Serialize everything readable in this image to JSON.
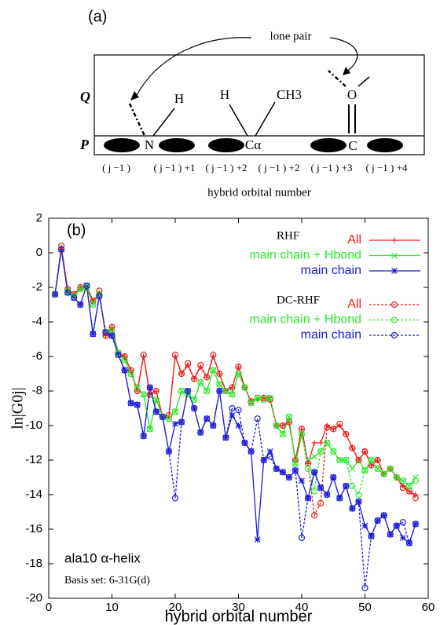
{
  "diagram": {
    "panel_label": "(a)",
    "lone_pair": "lone pair",
    "row_q": "Q",
    "row_p": "P",
    "atoms": [
      "H",
      "H",
      "CH3",
      "O",
      "N",
      "Cα",
      "C"
    ],
    "orbital_labels": [
      "( j −1 )",
      "( j −1 ) +1",
      "( j −1 ) +2",
      "( j −1 ) +2",
      "( j −1 ) +3",
      "( j −1 ) +4"
    ],
    "caption": "hybrid orbital number"
  },
  "chart_data": {
    "type": "line",
    "panel_label": "(b)",
    "x_label": "hybrid orbital number",
    "y_label": "ln|G0j|",
    "annotations": [
      "ala10 α-helix",
      "Basis set: 6-31G(d)"
    ],
    "legend_groups": [
      "RHF",
      "DC-RHF"
    ],
    "xlim": [
      0,
      60
    ],
    "xticks": [
      0,
      10,
      20,
      30,
      40,
      50,
      60
    ],
    "ylim": [
      -20,
      2
    ],
    "yticks": [
      -20,
      -18,
      -16,
      -14,
      -12,
      -10,
      -8,
      -6,
      -4,
      -2,
      0,
      2
    ],
    "x": [
      1,
      2,
      3,
      4,
      5,
      6,
      7,
      8,
      9,
      10,
      11,
      12,
      13,
      14,
      15,
      16,
      17,
      18,
      19,
      20,
      21,
      22,
      23,
      24,
      25,
      26,
      27,
      28,
      29,
      30,
      31,
      32,
      33,
      34,
      35,
      36,
      37,
      38,
      39,
      40,
      41,
      42,
      43,
      44,
      45,
      46,
      47,
      48,
      49,
      50,
      51,
      52,
      53,
      54,
      55,
      56,
      57,
      58
    ],
    "series": [
      {
        "name": "All",
        "color": "#e8211d",
        "linestyle": "solid",
        "marker": "plus",
        "values": [
          -2.4,
          0.3,
          -2.1,
          -2.4,
          -2.0,
          -1.9,
          -2.8,
          -2.3,
          -4.8,
          -4.3,
          -5.8,
          -6.0,
          -6.8,
          -8.0,
          -6.0,
          -8.2,
          -8.0,
          -9.5,
          -9.5,
          -6.0,
          -7.0,
          -6.5,
          -7.3,
          -6.6,
          -7.2,
          -6.0,
          -7.0,
          -8.0,
          -7.8,
          -6.6,
          -7.8,
          -8.6,
          -8.5,
          -8.4,
          -8.5,
          -10.0,
          -10.0,
          -9.8,
          -12.0,
          -10.2,
          -12.2,
          -11.0,
          -11.0,
          -10.0,
          -10.2,
          -10.0,
          -10.5,
          -11.3,
          -12.0,
          -11.5,
          -12.3,
          -12.0,
          -12.8,
          -12.5,
          -13.0,
          -13.5,
          -13.8,
          -14.0
        ]
      },
      {
        "name": "main chain + Hbond",
        "color": "#2ee82e",
        "linestyle": "solid",
        "marker": "x",
        "values": [
          -2.4,
          0.2,
          -2.2,
          -2.5,
          -2.1,
          -2.0,
          -3.0,
          -2.4,
          -4.6,
          -4.5,
          -5.8,
          -6.2,
          -7.0,
          -7.8,
          -8.2,
          -10.2,
          -8.5,
          -9.5,
          -9.6,
          -9.2,
          -8.0,
          -8.2,
          -8.5,
          -7.5,
          -8.0,
          -6.8,
          -7.6,
          -8.0,
          -8.2,
          -7.0,
          -7.8,
          -8.7,
          -8.4,
          -8.5,
          -8.4,
          -10.0,
          -10.5,
          -9.5,
          -12.2,
          -10.5,
          -12.0,
          -11.8,
          -11.5,
          -11.0,
          -11.5,
          -12.0,
          -12.0,
          -12.5,
          -12.0,
          -12.6,
          -12.0,
          -12.5,
          -12.8,
          -12.5,
          -13.0,
          -13.2,
          -13.5,
          -13.0
        ]
      },
      {
        "name": "main chain",
        "color": "#1c1cd6",
        "linestyle": "solid",
        "marker": "star",
        "values": [
          -2.4,
          0.2,
          -2.3,
          -2.6,
          -3.0,
          -1.9,
          -4.7,
          -2.5,
          -4.6,
          -4.8,
          -5.9,
          -6.8,
          -8.7,
          -8.8,
          -10.6,
          -7.8,
          -9.2,
          -9.5,
          -11.5,
          -9.9,
          -9.8,
          -8.0,
          -9.0,
          -10.4,
          -9.6,
          -10.0,
          -8.0,
          -10.7,
          -9.4,
          -10.0,
          -11.0,
          -11.5,
          -16.6,
          -12.0,
          -11.5,
          -12.5,
          -12.7,
          -13.0,
          -12.6,
          -13.2,
          -14.2,
          -12.7,
          -13.6,
          -14.0,
          -13.0,
          -14.2,
          -13.5,
          -14.8,
          -14.4,
          -15.8,
          -16.4,
          -15.5,
          -15.2,
          -16.3,
          -15.8,
          -16.5,
          -16.8,
          -15.7
        ]
      },
      {
        "name": "All",
        "color": "#e8211d",
        "linestyle": "dashed",
        "marker": "circle",
        "values": [
          -2.4,
          0.4,
          -2.1,
          -2.4,
          -2.0,
          -2.0,
          -2.8,
          -2.2,
          -4.8,
          -4.3,
          -5.8,
          -6.0,
          -6.8,
          -8.0,
          -5.9,
          -8.2,
          -8.0,
          -9.5,
          -9.4,
          -5.9,
          -7.0,
          -6.4,
          -7.3,
          -6.5,
          -7.2,
          -5.9,
          -7.0,
          -8.0,
          -7.8,
          -6.6,
          -7.8,
          -8.6,
          -8.4,
          -8.4,
          -8.5,
          -10.0,
          -10.0,
          -9.8,
          -12.0,
          -10.2,
          -12.2,
          -15.2,
          -14.5,
          -10.1,
          -10.2,
          -9.9,
          -10.5,
          -11.3,
          -12.0,
          -11.5,
          -12.3,
          -12.0,
          -12.8,
          -12.5,
          -13.0,
          -13.6,
          -13.8,
          -14.2
        ]
      },
      {
        "name": "main chain + Hbond",
        "color": "#2ee82e",
        "linestyle": "dashed",
        "marker": "circle",
        "values": [
          -2.4,
          0.2,
          -2.2,
          -2.5,
          -2.1,
          -2.0,
          -3.0,
          -2.4,
          -4.6,
          -4.5,
          -5.8,
          -6.2,
          -7.0,
          -7.8,
          -8.2,
          -10.2,
          -8.5,
          -9.5,
          -9.6,
          -9.2,
          -8.0,
          -8.2,
          -8.5,
          -7.5,
          -8.0,
          -6.8,
          -7.6,
          -8.0,
          -8.2,
          -7.0,
          -7.8,
          -8.7,
          -8.4,
          -8.5,
          -8.4,
          -10.0,
          -10.5,
          -9.5,
          -12.2,
          -10.5,
          -12.5,
          -13.8,
          -11.5,
          -11.0,
          -11.5,
          -12.0,
          -12.0,
          -13.5,
          -14.0,
          -12.6,
          -12.0,
          -12.5,
          -12.8,
          -12.5,
          -13.0,
          -13.2,
          -13.5,
          -13.2
        ]
      },
      {
        "name": "main chain",
        "color": "#1c1cd6",
        "linestyle": "dashed",
        "marker": "circle",
        "values": [
          -2.4,
          0.2,
          -2.3,
          -2.6,
          -3.0,
          -1.9,
          -4.7,
          -2.5,
          -4.6,
          -4.8,
          -5.9,
          -6.8,
          -8.7,
          -8.8,
          -10.6,
          -7.8,
          -9.2,
          -9.5,
          -11.5,
          -14.2,
          -9.8,
          -8.0,
          -9.0,
          -10.4,
          -9.6,
          -10.0,
          -8.0,
          -10.7,
          -9.0,
          -9.1,
          -11.0,
          -11.5,
          -9.6,
          -12.0,
          -11.8,
          -12.5,
          -12.7,
          -13.0,
          -12.6,
          -16.5,
          -14.2,
          -12.7,
          -13.6,
          -14.0,
          -13.0,
          -14.2,
          -13.5,
          -14.8,
          -14.4,
          -19.4,
          -16.4,
          -15.5,
          -15.2,
          -16.3,
          -15.8,
          -15.6,
          -16.8,
          -15.7
        ]
      }
    ]
  }
}
